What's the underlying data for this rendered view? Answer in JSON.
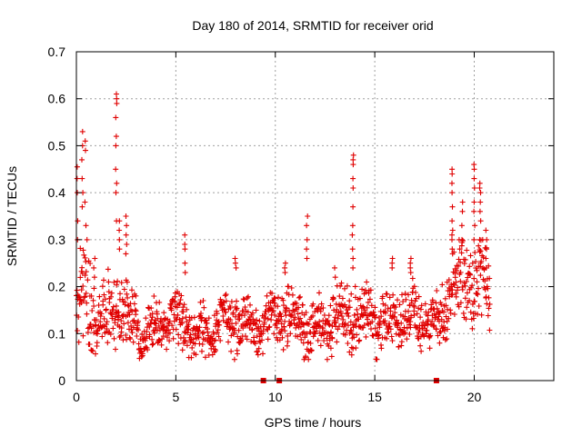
{
  "chart_data": {
    "type": "scatter",
    "title": "Day 180 of 2014, SRMTID for receiver orid",
    "xlabel": "GPS time / hours",
    "ylabel": "SRMTID / TECUs",
    "xlim": [
      0,
      24
    ],
    "ylim": [
      0,
      0.7
    ],
    "xticks": [
      0,
      5,
      10,
      15,
      20
    ],
    "yticks": [
      0,
      0.1,
      0.2,
      0.3,
      0.4,
      0.5,
      0.6,
      0.7
    ],
    "xtick_labels": [
      "0",
      "5",
      "10",
      "15",
      "20"
    ],
    "ytick_labels": [
      "0",
      "0.1",
      "0.2",
      "0.3",
      "0.4",
      "0.5",
      "0.6",
      "0.7"
    ],
    "grid": true,
    "marker": "+",
    "color": "#e00000",
    "gap_markers_x": [
      9.4,
      10.2,
      18.1
    ],
    "envelope": {
      "x": [
        0.0,
        0.3,
        0.6,
        1.0,
        1.5,
        2.0,
        2.5,
        3.0,
        3.5,
        4.0,
        4.5,
        5.0,
        5.5,
        6.0,
        6.5,
        7.0,
        7.5,
        8.0,
        8.5,
        9.0,
        9.5,
        10.0,
        10.5,
        11.0,
        11.5,
        12.0,
        12.5,
        13.0,
        13.5,
        14.0,
        14.5,
        15.0,
        15.5,
        16.0,
        16.5,
        17.0,
        17.5,
        18.0,
        18.5,
        19.0,
        19.5,
        20.0,
        20.5,
        20.8
      ],
      "center": [
        0.14,
        0.16,
        0.17,
        0.15,
        0.13,
        0.15,
        0.14,
        0.12,
        0.11,
        0.11,
        0.12,
        0.13,
        0.12,
        0.1,
        0.1,
        0.11,
        0.12,
        0.12,
        0.12,
        0.12,
        0.12,
        0.13,
        0.15,
        0.13,
        0.12,
        0.11,
        0.12,
        0.13,
        0.14,
        0.14,
        0.14,
        0.13,
        0.12,
        0.13,
        0.15,
        0.14,
        0.13,
        0.12,
        0.14,
        0.2,
        0.2,
        0.21,
        0.2,
        0.16
      ],
      "spread": [
        0.09,
        0.12,
        0.12,
        0.09,
        0.07,
        0.09,
        0.07,
        0.06,
        0.05,
        0.05,
        0.05,
        0.06,
        0.06,
        0.05,
        0.05,
        0.05,
        0.06,
        0.06,
        0.05,
        0.05,
        0.05,
        0.06,
        0.07,
        0.06,
        0.06,
        0.05,
        0.06,
        0.06,
        0.06,
        0.07,
        0.06,
        0.06,
        0.06,
        0.06,
        0.07,
        0.06,
        0.06,
        0.05,
        0.07,
        0.09,
        0.09,
        0.1,
        0.1,
        0.08
      ]
    },
    "spikes": [
      {
        "x": 0.05,
        "values": [
          0.455,
          0.43,
          0.4,
          0.34,
          0.3
        ]
      },
      {
        "x": 0.3,
        "values": [
          0.53,
          0.5,
          0.47,
          0.43,
          0.4,
          0.37
        ]
      },
      {
        "x": 0.45,
        "values": [
          0.51,
          0.49,
          0.38,
          0.33
        ]
      },
      {
        "x": 0.9,
        "values": [
          0.26,
          0.24,
          0.22
        ]
      },
      {
        "x": 2.0,
        "values": [
          0.61,
          0.6,
          0.59,
          0.56,
          0.52,
          0.5,
          0.45,
          0.42,
          0.4,
          0.34
        ]
      },
      {
        "x": 2.15,
        "values": [
          0.34,
          0.32,
          0.3,
          0.28
        ]
      },
      {
        "x": 2.5,
        "values": [
          0.35,
          0.33,
          0.31,
          0.29,
          0.27
        ]
      },
      {
        "x": 5.45,
        "values": [
          0.31,
          0.29,
          0.28,
          0.25,
          0.23
        ]
      },
      {
        "x": 8.0,
        "values": [
          0.26,
          0.25,
          0.24
        ]
      },
      {
        "x": 10.5,
        "values": [
          0.25,
          0.24,
          0.23
        ]
      },
      {
        "x": 11.6,
        "values": [
          0.35,
          0.33,
          0.3,
          0.28,
          0.26
        ]
      },
      {
        "x": 13.0,
        "values": [
          0.24,
          0.22
        ]
      },
      {
        "x": 13.9,
        "values": [
          0.48,
          0.47,
          0.46,
          0.43,
          0.41,
          0.37,
          0.33,
          0.31,
          0.28,
          0.26,
          0.24
        ]
      },
      {
        "x": 15.9,
        "values": [
          0.26,
          0.25,
          0.24
        ]
      },
      {
        "x": 16.8,
        "values": [
          0.26,
          0.25,
          0.24,
          0.23
        ]
      },
      {
        "x": 18.9,
        "values": [
          0.45,
          0.44,
          0.42,
          0.4,
          0.37,
          0.34,
          0.32,
          0.31,
          0.3,
          0.28
        ]
      },
      {
        "x": 19.4,
        "values": [
          0.38,
          0.36,
          0.33,
          0.3
        ]
      },
      {
        "x": 20.0,
        "values": [
          0.46,
          0.45,
          0.43,
          0.41,
          0.38,
          0.36,
          0.33,
          0.3
        ]
      },
      {
        "x": 20.3,
        "values": [
          0.42,
          0.41,
          0.4,
          0.38,
          0.36,
          0.34,
          0.3
        ]
      },
      {
        "x": 20.6,
        "values": [
          0.32,
          0.3,
          0.28,
          0.26,
          0.24
        ]
      }
    ],
    "min_value": 0.045,
    "max_value": 0.615,
    "x_coverage": [
      0.0,
      20.8
    ]
  }
}
